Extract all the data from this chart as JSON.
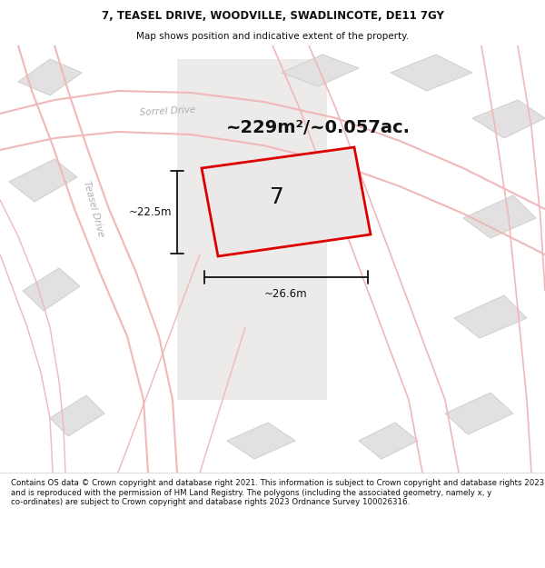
{
  "title": "7, TEASEL DRIVE, WOODVILLE, SWADLINCOTE, DE11 7GY",
  "subtitle": "Map shows position and indicative extent of the property.",
  "area_text": "~229m²/~0.057ac.",
  "dim_width": "~26.6m",
  "dim_height": "~22.5m",
  "plot_number": "7",
  "footer": "Contains OS data © Crown copyright and database right 2021. This information is subject to Crown copyright and database rights 2023 and is reproduced with the permission of HM Land Registry. The polygons (including the associated geometry, namely x, y co-ordinates) are subject to Crown copyright and database rights 2023 Ordnance Survey 100026316.",
  "bg_color": "#ffffff",
  "map_bg": "#f5f3f3",
  "road_line_color": "#f0b8b8",
  "building_fill": "#e2e0e0",
  "building_edge": "#d0cdcd",
  "plot_fill": "#eae8e8",
  "plot_edge": "#dd0000",
  "dim_line_color": "#111111",
  "text_color": "#111111",
  "label_road_color": "#b0aeae",
  "header_line_color": "#dddddd"
}
